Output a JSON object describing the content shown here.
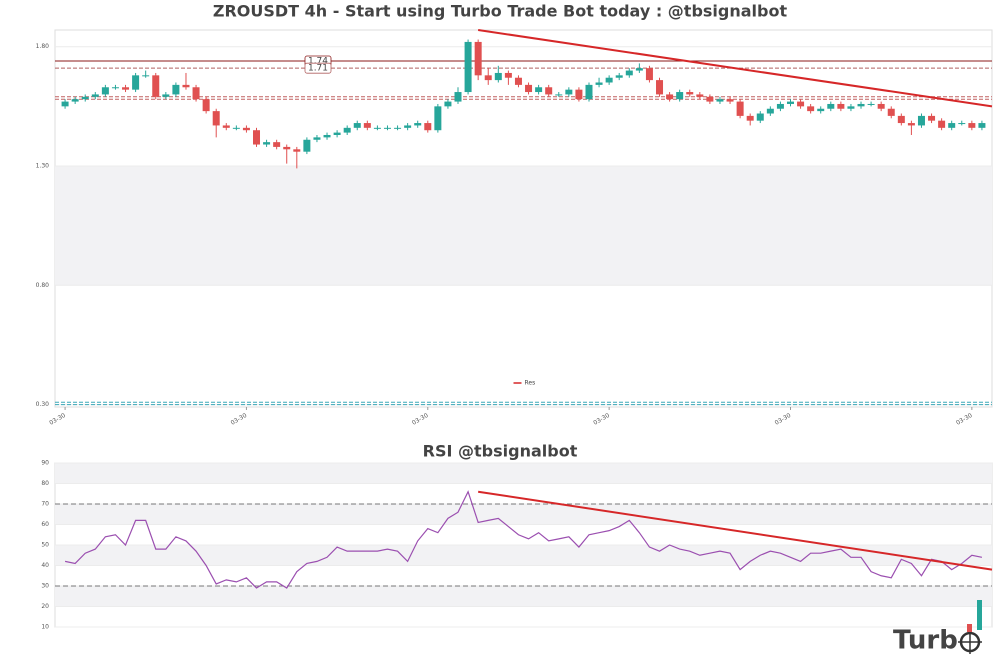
{
  "chart_data": [
    {
      "type": "candlestick",
      "title": "ZROUSDT 4h - Start using Turbo Trade Bot today : @tbsignalbot",
      "open": [
        1.55,
        1.57,
        1.58,
        1.59,
        1.6,
        1.63,
        1.63,
        1.62,
        1.68,
        1.68,
        1.59,
        1.6,
        1.64,
        1.63,
        1.58,
        1.53,
        1.47,
        1.46,
        1.46,
        1.45,
        1.39,
        1.4,
        1.38,
        1.37,
        1.36,
        1.41,
        1.42,
        1.43,
        1.44,
        1.46,
        1.48,
        1.46,
        1.46,
        1.46,
        1.46,
        1.47,
        1.48,
        1.45,
        1.55,
        1.57,
        1.61,
        1.82,
        1.68,
        1.66,
        1.69,
        1.67,
        1.64,
        1.61,
        1.63,
        1.6,
        1.6,
        1.62,
        1.58,
        1.64,
        1.65,
        1.67,
        1.68,
        1.7,
        1.71,
        1.66,
        1.6,
        1.58,
        1.61,
        1.6,
        1.59,
        1.57,
        1.58,
        1.57,
        1.51,
        1.49,
        1.52,
        1.54,
        1.56,
        1.57,
        1.55,
        1.53,
        1.54,
        1.56,
        1.54,
        1.55,
        1.56,
        1.56,
        1.54,
        1.51,
        1.48,
        1.47,
        1.51,
        1.49,
        1.46,
        1.48,
        1.48,
        1.46
      ],
      "high": [
        1.58,
        1.59,
        1.6,
        1.61,
        1.64,
        1.64,
        1.64,
        1.69,
        1.7,
        1.69,
        1.61,
        1.65,
        1.69,
        1.64,
        1.59,
        1.54,
        1.48,
        1.47,
        1.47,
        1.46,
        1.41,
        1.41,
        1.39,
        1.38,
        1.42,
        1.43,
        1.44,
        1.45,
        1.47,
        1.49,
        1.49,
        1.47,
        1.47,
        1.47,
        1.48,
        1.49,
        1.49,
        1.56,
        1.58,
        1.63,
        1.83,
        1.83,
        1.71,
        1.72,
        1.7,
        1.68,
        1.65,
        1.64,
        1.64,
        1.61,
        1.63,
        1.63,
        1.65,
        1.67,
        1.68,
        1.69,
        1.71,
        1.73,
        1.72,
        1.67,
        1.61,
        1.62,
        1.62,
        1.61,
        1.6,
        1.59,
        1.59,
        1.58,
        1.52,
        1.53,
        1.55,
        1.57,
        1.58,
        1.58,
        1.56,
        1.55,
        1.57,
        1.57,
        1.56,
        1.57,
        1.57,
        1.57,
        1.55,
        1.52,
        1.49,
        1.52,
        1.52,
        1.5,
        1.49,
        1.49,
        1.49,
        1.49
      ],
      "low": [
        1.54,
        1.56,
        1.57,
        1.58,
        1.59,
        1.62,
        1.61,
        1.61,
        1.67,
        1.58,
        1.58,
        1.59,
        1.62,
        1.57,
        1.52,
        1.42,
        1.45,
        1.45,
        1.44,
        1.38,
        1.38,
        1.37,
        1.31,
        1.29,
        1.35,
        1.4,
        1.41,
        1.42,
        1.43,
        1.45,
        1.45,
        1.45,
        1.45,
        1.45,
        1.45,
        1.46,
        1.44,
        1.44,
        1.54,
        1.56,
        1.6,
        1.66,
        1.64,
        1.65,
        1.64,
        1.63,
        1.6,
        1.6,
        1.59,
        1.59,
        1.59,
        1.57,
        1.57,
        1.63,
        1.64,
        1.66,
        1.67,
        1.69,
        1.65,
        1.59,
        1.57,
        1.57,
        1.59,
        1.58,
        1.56,
        1.56,
        1.56,
        1.5,
        1.47,
        1.48,
        1.51,
        1.53,
        1.55,
        1.54,
        1.52,
        1.52,
        1.53,
        1.53,
        1.53,
        1.54,
        1.55,
        1.53,
        1.5,
        1.47,
        1.43,
        1.46,
        1.48,
        1.45,
        1.45,
        1.47,
        1.45,
        1.45
      ],
      "close": [
        1.57,
        1.58,
        1.59,
        1.6,
        1.63,
        1.63,
        1.62,
        1.68,
        1.68,
        1.59,
        1.6,
        1.64,
        1.63,
        1.58,
        1.53,
        1.47,
        1.46,
        1.46,
        1.45,
        1.39,
        1.4,
        1.38,
        1.37,
        1.36,
        1.41,
        1.42,
        1.43,
        1.44,
        1.46,
        1.48,
        1.46,
        1.46,
        1.46,
        1.46,
        1.47,
        1.48,
        1.45,
        1.55,
        1.57,
        1.61,
        1.82,
        1.68,
        1.66,
        1.69,
        1.67,
        1.64,
        1.61,
        1.63,
        1.6,
        1.6,
        1.62,
        1.58,
        1.64,
        1.65,
        1.67,
        1.68,
        1.7,
        1.71,
        1.66,
        1.6,
        1.58,
        1.61,
        1.6,
        1.59,
        1.57,
        1.58,
        1.57,
        1.51,
        1.49,
        1.52,
        1.54,
        1.56,
        1.57,
        1.55,
        1.53,
        1.54,
        1.56,
        1.54,
        1.55,
        1.56,
        1.56,
        1.54,
        1.51,
        1.48,
        1.47,
        1.51,
        1.49,
        1.46,
        1.48,
        1.48,
        1.46,
        1.48
      ],
      "up_color": "#26a69a",
      "down_color": "#e05050",
      "xlim": [
        -1,
        92
      ],
      "xticks": [
        {
          "value": 0,
          "label": "03-30"
        },
        {
          "value": 18,
          "label": "03-30"
        },
        {
          "value": 36,
          "label": "03-30"
        },
        {
          "value": 54,
          "label": "03-30"
        },
        {
          "value": 72,
          "label": "03-30"
        },
        {
          "value": 90,
          "label": "03-30"
        }
      ],
      "ylim": [
        0.29,
        1.87
      ],
      "yticks": [
        {
          "value": 1.8,
          "label": "1.80"
        },
        {
          "value": 1.3,
          "label": "1.30"
        },
        {
          "value": 0.8,
          "label": "0.80"
        },
        {
          "value": 0.3,
          "label": "0.30"
        }
      ],
      "bands": [
        [
          0.8,
          1.3
        ]
      ],
      "levels": [
        {
          "value": 1.74,
          "color": "#8b1a1a",
          "dashed": false,
          "labeled": true
        },
        {
          "value": 1.71,
          "color": "#b06060",
          "dashed": true,
          "labeled": true
        },
        {
          "value": 1.59,
          "color": "#c06060",
          "dashed": true,
          "labeled": false
        },
        {
          "value": 1.58,
          "color": "#c06060",
          "dashed": true,
          "labeled": false
        },
        {
          "value": 0.31,
          "color": "#3aa8b8",
          "dashed": true,
          "labeled": false
        },
        {
          "value": 0.3,
          "color": "#3aa8b8",
          "dashed": true,
          "labeled": false
        }
      ],
      "lines": [
        {
          "name": "Res",
          "color": "#d62728",
          "x": [
            41,
            92
          ],
          "y": [
            1.87,
            1.55
          ]
        }
      ]
    },
    {
      "type": "line",
      "title": "RSI @tbsignalbot",
      "color": "#9b4fb0",
      "values": [
        42,
        41,
        46,
        48,
        54,
        55,
        50,
        62,
        62,
        48,
        48,
        54,
        52,
        47,
        40,
        31,
        33,
        32,
        34,
        29,
        32,
        32,
        29,
        37,
        41,
        42,
        44,
        49,
        47,
        47,
        47,
        47,
        48,
        47,
        42,
        52,
        58,
        56,
        63,
        66,
        76,
        61,
        62,
        63,
        59,
        55,
        53,
        56,
        52,
        53,
        54,
        49,
        55,
        56,
        57,
        59,
        62,
        56,
        49,
        47,
        50,
        48,
        47,
        45,
        46,
        47,
        46,
        38,
        42,
        45,
        47,
        46,
        44,
        42,
        46,
        46,
        47,
        48,
        44,
        44,
        37,
        35,
        34,
        43,
        41,
        35,
        43,
        42,
        38,
        41,
        45,
        44
      ],
      "xlim": [
        -1,
        92
      ],
      "ylim": [
        10,
        90
      ],
      "yticks": [
        10,
        20,
        30,
        40,
        50,
        60,
        70,
        80,
        90
      ],
      "bands": [
        [
          80,
          90
        ],
        [
          60,
          70
        ],
        [
          40,
          50
        ],
        [
          20,
          30
        ]
      ],
      "ref_lines": [
        30,
        70
      ],
      "trendline": {
        "color": "#d62728",
        "x": [
          41,
          92
        ],
        "y": [
          76,
          38
        ]
      }
    }
  ],
  "logo": "Turb"
}
